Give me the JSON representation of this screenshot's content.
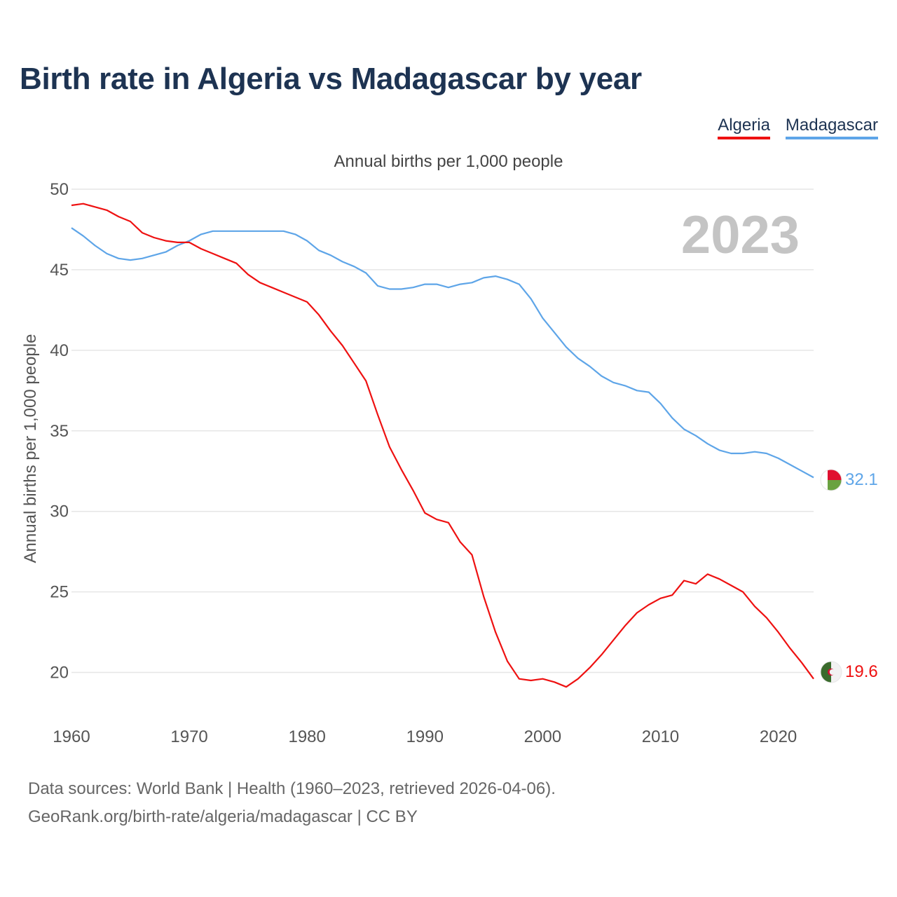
{
  "title": "Birth rate in Algeria vs Madagascar by year",
  "subtitle": "Annual births per 1,000 people",
  "legend": [
    {
      "label": "Algeria",
      "color": "#ee1111"
    },
    {
      "label": "Madagascar",
      "color": "#5ea5e8"
    }
  ],
  "year_overlay": "2023",
  "footer": {
    "line1": "Data sources: World Bank | Health (1960–2023, retrieved 2026-04-06).",
    "line2": "GeoRank.org/birth-rate/algeria/madagascar | CC BY"
  },
  "chart_data": {
    "type": "line",
    "title": "Birth rate in Algeria vs Madagascar by year",
    "xlabel": "",
    "ylabel": "Annual births per 1,000 people",
    "xlim": [
      1960,
      2023
    ],
    "ylim": [
      16.5,
      50
    ],
    "yticks": [
      20,
      25,
      30,
      35,
      40,
      45,
      50
    ],
    "xticks": [
      1960,
      1970,
      1980,
      1990,
      2000,
      2010,
      2020
    ],
    "grid": true,
    "x": [
      1960,
      1961,
      1962,
      1963,
      1964,
      1965,
      1966,
      1967,
      1968,
      1969,
      1970,
      1971,
      1972,
      1973,
      1974,
      1975,
      1976,
      1977,
      1978,
      1979,
      1980,
      1981,
      1982,
      1983,
      1984,
      1985,
      1986,
      1987,
      1988,
      1989,
      1990,
      1991,
      1992,
      1993,
      1994,
      1995,
      1996,
      1997,
      1998,
      1999,
      2000,
      2001,
      2002,
      2003,
      2004,
      2005,
      2006,
      2007,
      2008,
      2009,
      2010,
      2011,
      2012,
      2013,
      2014,
      2015,
      2016,
      2017,
      2018,
      2019,
      2020,
      2021,
      2022,
      2023
    ],
    "series": [
      {
        "name": "Algeria",
        "color": "#ee1111",
        "end_label": "19.6",
        "values": [
          49.0,
          49.1,
          48.9,
          48.7,
          48.3,
          48.0,
          47.3,
          47.0,
          46.8,
          46.7,
          46.7,
          46.3,
          46.0,
          45.7,
          45.4,
          44.7,
          44.2,
          43.9,
          43.6,
          43.3,
          43.0,
          42.2,
          41.2,
          40.3,
          39.2,
          38.1,
          36.0,
          34.0,
          32.6,
          31.3,
          29.9,
          29.5,
          29.3,
          28.1,
          27.3,
          24.7,
          22.5,
          20.7,
          19.6,
          19.5,
          19.6,
          19.4,
          19.1,
          19.6,
          20.3,
          21.1,
          22.0,
          22.9,
          23.7,
          24.2,
          24.6,
          24.8,
          25.7,
          25.5,
          26.1,
          25.8,
          25.4,
          25.0,
          24.1,
          23.4,
          22.5,
          21.5,
          20.6,
          19.6
        ]
      },
      {
        "name": "Madagascar",
        "color": "#5ea5e8",
        "end_label": "32.1",
        "values": [
          47.6,
          47.1,
          46.5,
          46.0,
          45.7,
          45.6,
          45.7,
          45.9,
          46.1,
          46.5,
          46.8,
          47.2,
          47.4,
          47.4,
          47.4,
          47.4,
          47.4,
          47.4,
          47.4,
          47.2,
          46.8,
          46.2,
          45.9,
          45.5,
          45.2,
          44.8,
          44.0,
          43.8,
          43.8,
          43.9,
          44.1,
          44.1,
          43.9,
          44.1,
          44.2,
          44.5,
          44.6,
          44.4,
          44.1,
          43.2,
          42.0,
          41.1,
          40.2,
          39.5,
          39.0,
          38.4,
          38.0,
          37.8,
          37.5,
          37.4,
          36.7,
          35.8,
          35.1,
          34.7,
          34.2,
          33.8,
          33.6,
          33.6,
          33.7,
          33.6,
          33.3,
          32.9,
          32.5,
          32.1
        ]
      }
    ]
  }
}
